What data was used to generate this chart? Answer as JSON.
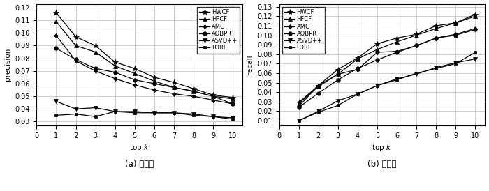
{
  "x": [
    1,
    2,
    3,
    4,
    5,
    6,
    7,
    8,
    9,
    10
  ],
  "precision": {
    "HWCF": [
      0.116,
      0.097,
      0.09,
      0.077,
      0.072,
      0.065,
      0.061,
      0.056,
      0.051,
      0.049
    ],
    "HFCF": [
      0.109,
      0.09,
      0.085,
      0.074,
      0.068,
      0.062,
      0.057,
      0.054,
      0.05,
      0.048
    ],
    "AMC": [
      0.098,
      0.078,
      0.07,
      0.064,
      0.059,
      0.055,
      0.052,
      0.05,
      0.047,
      0.044
    ],
    "AOBPR": [
      0.088,
      0.079,
      0.072,
      0.069,
      0.063,
      0.06,
      0.057,
      0.054,
      0.05,
      0.044
    ],
    "ASVD++": [
      0.046,
      0.04,
      0.041,
      0.038,
      0.038,
      0.037,
      0.037,
      0.036,
      0.034,
      0.033
    ],
    "LORE": [
      0.035,
      0.036,
      0.034,
      0.038,
      0.037,
      0.037,
      0.037,
      0.035,
      0.034,
      0.032
    ]
  },
  "recall": {
    "HWCF": [
      0.029,
      0.047,
      0.064,
      0.076,
      0.091,
      0.097,
      0.101,
      0.11,
      0.113,
      0.122
    ],
    "HFCF": [
      0.028,
      0.046,
      0.059,
      0.075,
      0.085,
      0.093,
      0.1,
      0.107,
      0.113,
      0.12
    ],
    "AMC": [
      0.025,
      0.047,
      0.059,
      0.064,
      0.082,
      0.083,
      0.089,
      0.097,
      0.101,
      0.107
    ],
    "AOBPR": [
      0.024,
      0.039,
      0.053,
      0.065,
      0.074,
      0.082,
      0.089,
      0.097,
      0.1,
      0.106
    ],
    "ASVD++": [
      0.01,
      0.02,
      0.031,
      0.038,
      0.047,
      0.054,
      0.059,
      0.066,
      0.071,
      0.075
    ],
    "LORE": [
      0.01,
      0.019,
      0.026,
      0.038,
      0.047,
      0.053,
      0.06,
      0.065,
      0.07,
      0.082
    ]
  },
  "series_styles": {
    "HWCF": {
      "marker": "*",
      "color": "#000000",
      "linestyle": "-",
      "ms": 6
    },
    "HFCF": {
      "marker": "^",
      "color": "#000000",
      "linestyle": "-",
      "ms": 4
    },
    "AMC": {
      "marker": "D",
      "color": "#000000",
      "linestyle": "-",
      "ms": 3
    },
    "AOBPR": {
      "marker": "o",
      "color": "#000000",
      "linestyle": "-",
      "ms": 4
    },
    "ASVD++": {
      "marker": "v",
      "color": "#000000",
      "linestyle": "-",
      "ms": 4
    },
    "LORE": {
      "marker": "s",
      "color": "#000000",
      "linestyle": "-",
      "ms": 3
    }
  },
  "precision_ylim": [
    0.027,
    0.123
  ],
  "recall_ylim": [
    0.005,
    0.133
  ],
  "precision_yticks": [
    0.03,
    0.04,
    0.05,
    0.06,
    0.07,
    0.08,
    0.09,
    0.1,
    0.11,
    0.12
  ],
  "recall_yticks": [
    0.01,
    0.02,
    0.03,
    0.04,
    0.05,
    0.06,
    0.07,
    0.08,
    0.09,
    0.1,
    0.11,
    0.12,
    0.13
  ],
  "xlabel": "top-$k$",
  "ylabel_left": "precision",
  "ylabel_right": "recall",
  "caption_left": "(a) 准确率",
  "caption_right": "(b) 召回率",
  "legend_order": [
    "HWCF",
    "HFCF",
    "AMC",
    "AOBPR",
    "ASVD++",
    "LORE"
  ],
  "linewidth": 0.9,
  "font_size": 7.5,
  "caption_font_size": 8.5,
  "tick_font_size": 7
}
